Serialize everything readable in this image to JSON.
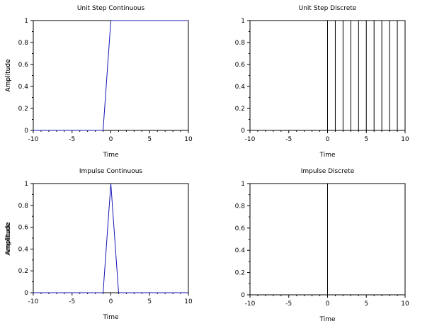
{
  "colors": {
    "continuous_line": "#1414b4",
    "discrete_line": "#000000",
    "axis": "#000000",
    "background": "#ffffff"
  },
  "chart_data": [
    {
      "id": "unit-step-continuous",
      "type": "line",
      "title": "Unit Step Continuous",
      "xlabel": "Time",
      "ylabel": "Amplitude",
      "xlim": [
        -10,
        10
      ],
      "ylim": [
        0,
        1
      ],
      "xticks": [
        -10,
        -5,
        0,
        5,
        10
      ],
      "yticks": [
        0,
        0.2,
        0.4,
        0.6,
        0.8,
        1
      ],
      "x_tick_labels": [
        "-10",
        "-5",
        "0",
        "5",
        "10"
      ],
      "y_tick_labels": [
        "0",
        "0.2",
        "0.4",
        "0.6",
        "0.8",
        "1"
      ],
      "x": [
        -10,
        -9,
        -8,
        -7,
        -6,
        -5,
        -4,
        -3,
        -2,
        -1,
        0,
        1,
        2,
        3,
        4,
        5,
        6,
        7,
        8,
        9,
        10
      ],
      "series": [
        {
          "values": [
            0,
            0,
            0,
            0,
            0,
            0,
            0,
            0,
            0,
            0,
            1,
            1,
            1,
            1,
            1,
            1,
            1,
            1,
            1,
            1,
            1
          ]
        }
      ]
    },
    {
      "id": "unit-step-discrete",
      "type": "stem",
      "title": "Unit Step Discrete",
      "xlabel": "Time",
      "ylabel": "Amplitude",
      "xlim": [
        -10,
        10
      ],
      "ylim": [
        0,
        1
      ],
      "xticks": [
        -10,
        -5,
        0,
        5,
        10
      ],
      "yticks": [
        0,
        0.2,
        0.4,
        0.6,
        0.8,
        1
      ],
      "x_tick_labels": [
        "-10",
        "-5",
        "0",
        "5",
        "10"
      ],
      "y_tick_labels": [
        "0",
        "0.2",
        "0.4",
        "0.6",
        "0.8",
        "1"
      ],
      "x": [
        -10,
        -9,
        -8,
        -7,
        -6,
        -5,
        -4,
        -3,
        -2,
        -1,
        0,
        1,
        2,
        3,
        4,
        5,
        6,
        7,
        8,
        9,
        10
      ],
      "series": [
        {
          "values": [
            0,
            0,
            0,
            0,
            0,
            0,
            0,
            0,
            0,
            0,
            1,
            1,
            1,
            1,
            1,
            1,
            1,
            1,
            1,
            1,
            1
          ]
        }
      ]
    },
    {
      "id": "impulse-continuous",
      "type": "line",
      "title": "Impulse Continuous",
      "xlabel": "Time",
      "ylabel": "Amplitude",
      "xlim": [
        -10,
        10
      ],
      "ylim": [
        0,
        1
      ],
      "xticks": [
        -10,
        -5,
        0,
        5,
        10
      ],
      "yticks": [
        0,
        0.2,
        0.4,
        0.6,
        0.8,
        1
      ],
      "x_tick_labels": [
        "-10",
        "-5",
        "0",
        "5",
        "10"
      ],
      "y_tick_labels": [
        "0",
        "0.2",
        "0.4",
        "0.6",
        "0.8",
        "1"
      ],
      "x": [
        -10,
        -9,
        -8,
        -7,
        -6,
        -5,
        -4,
        -3,
        -2,
        -1,
        0,
        1,
        2,
        3,
        4,
        5,
        6,
        7,
        8,
        9,
        10
      ],
      "series": [
        {
          "values": [
            0,
            0,
            0,
            0,
            0,
            0,
            0,
            0,
            0,
            0,
            1,
            0,
            0,
            0,
            0,
            0,
            0,
            0,
            0,
            0,
            0
          ]
        }
      ]
    },
    {
      "id": "impulse-discrete",
      "type": "stem",
      "title": "Impulse Discrete",
      "xlabel": "Time",
      "ylabel": "Amplitude",
      "xlim": [
        -10,
        10
      ],
      "ylim": [
        0,
        1
      ],
      "xticks": [
        -10,
        -5,
        0,
        5,
        10
      ],
      "yticks": [
        0,
        0.2,
        0.4,
        0.6,
        0.8,
        1
      ],
      "x_tick_labels": [
        "-10",
        "-5",
        "0",
        "5",
        "10"
      ],
      "y_tick_labels": [
        "0",
        "0.2",
        "0.4",
        "0.6",
        "0.8",
        "1"
      ],
      "x": [
        -10,
        -9,
        -8,
        -7,
        -6,
        -5,
        -4,
        -3,
        -2,
        -1,
        0,
        1,
        2,
        3,
        4,
        5,
        6,
        7,
        8,
        9,
        10
      ],
      "series": [
        {
          "values": [
            0,
            0,
            0,
            0,
            0,
            0,
            0,
            0,
            0,
            0,
            1,
            0,
            0,
            0,
            0,
            0,
            0,
            0,
            0,
            0,
            0
          ]
        }
      ]
    }
  ]
}
